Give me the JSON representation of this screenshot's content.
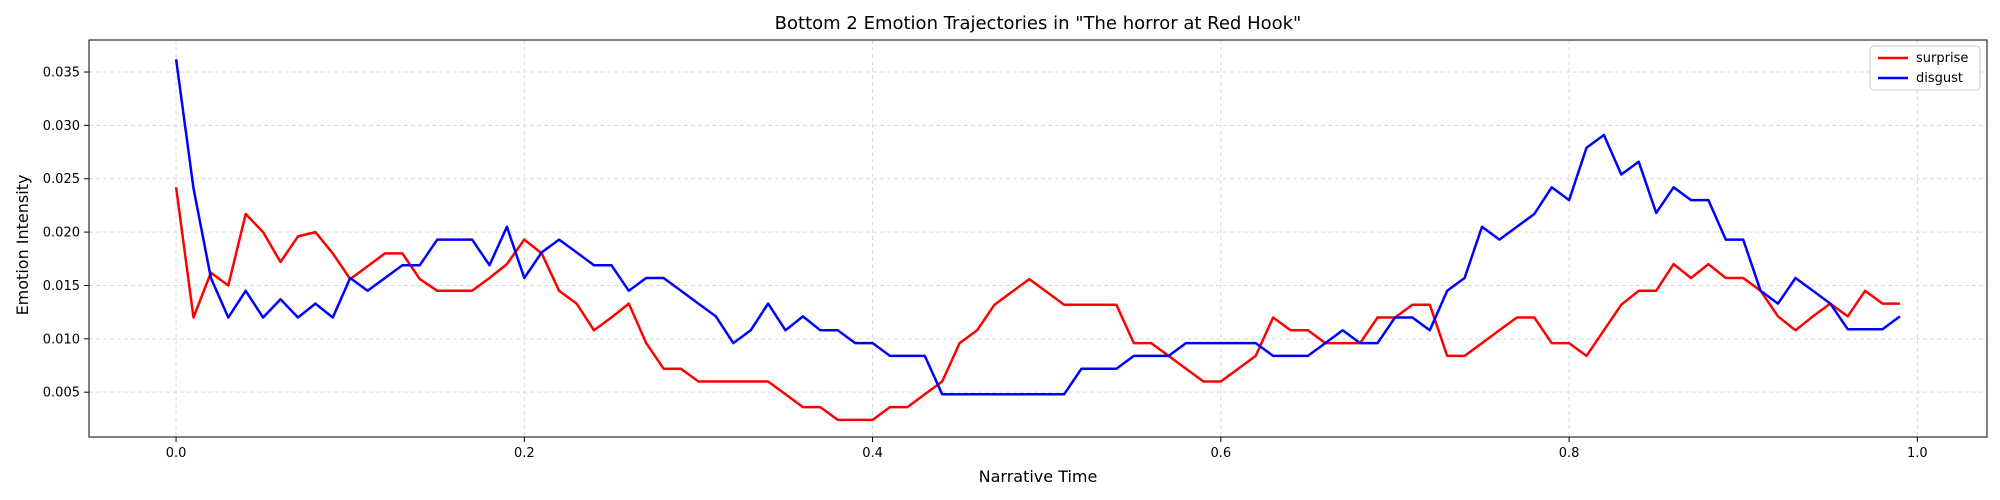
{
  "chart_data": {
    "type": "line",
    "title": "Bottom 2 Emotion Trajectories in \"The horror at Red Hook\"",
    "xlabel": "Narrative Time",
    "ylabel": "Emotion Intensity",
    "xlim": [
      -0.05,
      1.04
    ],
    "ylim": [
      0.0008,
      0.038
    ],
    "xticks": [
      0.0,
      0.2,
      0.4,
      0.6,
      0.8,
      1.0
    ],
    "xtick_labels": [
      "0.0",
      "0.2",
      "0.4",
      "0.6",
      "0.8",
      "1.0"
    ],
    "yticks": [
      0.005,
      0.01,
      0.015,
      0.02,
      0.025,
      0.03,
      0.035
    ],
    "ytick_labels": [
      "0.005",
      "0.010",
      "0.015",
      "0.020",
      "0.025",
      "0.030",
      "0.035"
    ],
    "grid": true,
    "legend_position": "top-right",
    "x": [
      0.0,
      0.01,
      0.02,
      0.03,
      0.04,
      0.05,
      0.06,
      0.07,
      0.08,
      0.09,
      0.1,
      0.11,
      0.12,
      0.13,
      0.14,
      0.15,
      0.16,
      0.17,
      0.18,
      0.19,
      0.2,
      0.21,
      0.22,
      0.23,
      0.24,
      0.25,
      0.26,
      0.27,
      0.28,
      0.29,
      0.3,
      0.31,
      0.32,
      0.33,
      0.34,
      0.35,
      0.36,
      0.37,
      0.38,
      0.39,
      0.4,
      0.41,
      0.42,
      0.43,
      0.44,
      0.45,
      0.46,
      0.47,
      0.48,
      0.49,
      0.5,
      0.51,
      0.52,
      0.53,
      0.54,
      0.55,
      0.56,
      0.57,
      0.58,
      0.59,
      0.6,
      0.61,
      0.62,
      0.63,
      0.64,
      0.65,
      0.66,
      0.67,
      0.68,
      0.69,
      0.7,
      0.71,
      0.72,
      0.73,
      0.74,
      0.75,
      0.76,
      0.77,
      0.78,
      0.79,
      0.8,
      0.81,
      0.82,
      0.83,
      0.84,
      0.85,
      0.86,
      0.87,
      0.88,
      0.89,
      0.9,
      0.91,
      0.92,
      0.93,
      0.94,
      0.95,
      0.96,
      0.97,
      0.98,
      0.99
    ],
    "series": [
      {
        "name": "surprise",
        "color": "#ff0000",
        "values": [
          0.0242,
          0.012,
          0.0162,
          0.015,
          0.0217,
          0.02,
          0.0172,
          0.0196,
          0.02,
          0.018,
          0.0156,
          0.0168,
          0.018,
          0.018,
          0.0156,
          0.0145,
          0.0145,
          0.0145,
          0.0157,
          0.017,
          0.0193,
          0.018,
          0.0145,
          0.0133,
          0.0108,
          0.012,
          0.0133,
          0.0096,
          0.0072,
          0.0072,
          0.006,
          0.006,
          0.006,
          0.006,
          0.006,
          0.0048,
          0.0036,
          0.0036,
          0.0024,
          0.0024,
          0.0024,
          0.0036,
          0.0036,
          0.0048,
          0.006,
          0.0096,
          0.0108,
          0.0132,
          0.0144,
          0.0156,
          0.0144,
          0.0132,
          0.0132,
          0.0132,
          0.0132,
          0.0096,
          0.0096,
          0.0084,
          0.0072,
          0.006,
          0.006,
          0.0072,
          0.0084,
          0.012,
          0.0108,
          0.0108,
          0.0096,
          0.0096,
          0.0096,
          0.012,
          0.012,
          0.0132,
          0.0132,
          0.0084,
          0.0084,
          0.0096,
          0.0108,
          0.012,
          0.012,
          0.0096,
          0.0096,
          0.0084,
          0.0108,
          0.0132,
          0.0145,
          0.0145,
          0.017,
          0.0157,
          0.017,
          0.0157,
          0.0157,
          0.0145,
          0.0121,
          0.0108,
          0.0121,
          0.0133,
          0.0121,
          0.0145,
          0.0133,
          0.0133
        ]
      },
      {
        "name": "disgust",
        "color": "#0000ff",
        "values": [
          0.0362,
          0.0241,
          0.0157,
          0.012,
          0.0145,
          0.012,
          0.0137,
          0.012,
          0.0133,
          0.012,
          0.0157,
          0.0145,
          0.0157,
          0.0169,
          0.0169,
          0.0193,
          0.0193,
          0.0193,
          0.0169,
          0.0205,
          0.0157,
          0.0181,
          0.0193,
          0.0181,
          0.0169,
          0.0169,
          0.0145,
          0.0157,
          0.0157,
          0.0145,
          0.0133,
          0.0121,
          0.0096,
          0.0108,
          0.0133,
          0.0108,
          0.0121,
          0.0108,
          0.0108,
          0.0096,
          0.0096,
          0.0084,
          0.0084,
          0.0084,
          0.0048,
          0.0048,
          0.0048,
          0.0048,
          0.0048,
          0.0048,
          0.0048,
          0.0048,
          0.0072,
          0.0072,
          0.0072,
          0.0084,
          0.0084,
          0.0084,
          0.0096,
          0.0096,
          0.0096,
          0.0096,
          0.0096,
          0.0084,
          0.0084,
          0.0084,
          0.0096,
          0.0108,
          0.0096,
          0.0096,
          0.012,
          0.012,
          0.0108,
          0.0145,
          0.0157,
          0.0205,
          0.0193,
          0.0205,
          0.0217,
          0.0242,
          0.023,
          0.0279,
          0.0291,
          0.0254,
          0.0266,
          0.0218,
          0.0242,
          0.023,
          0.023,
          0.0193,
          0.0193,
          0.0145,
          0.0133,
          0.0157,
          0.0145,
          0.0133,
          0.0109,
          0.0109,
          0.0109,
          0.0121
        ]
      }
    ]
  }
}
